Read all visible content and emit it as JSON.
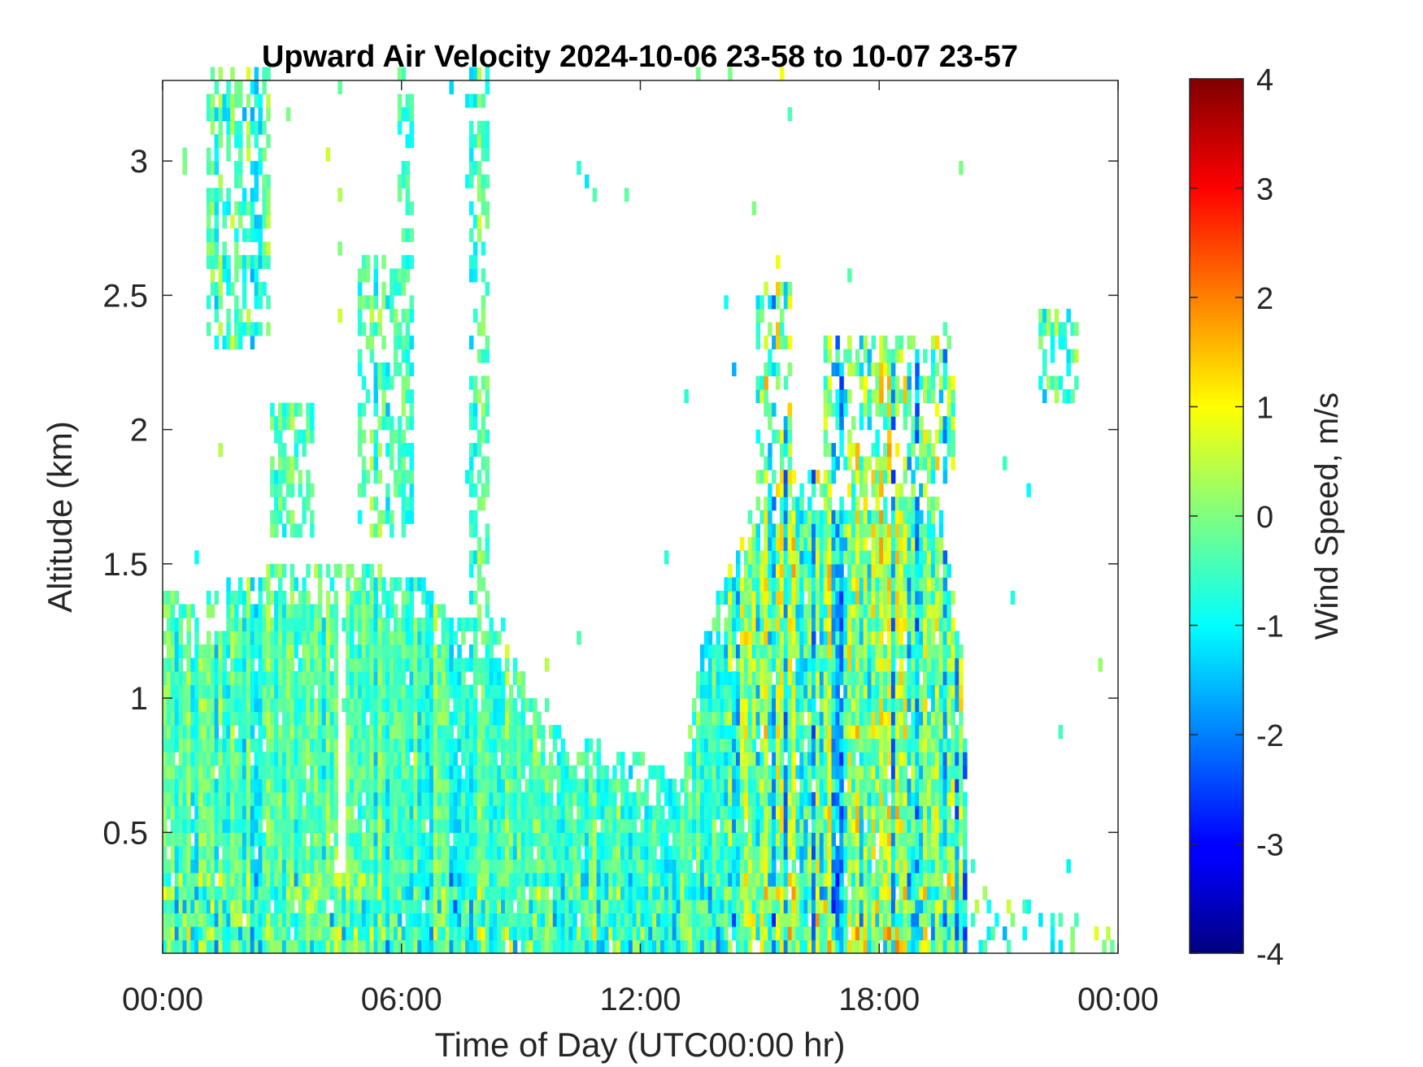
{
  "chart_data": {
    "type": "heatmap",
    "title": "Upward Air Velocity 2024-10-06 23-58 to 10-07 23-57",
    "xlabel": "Time of Day (UTC00:00 hr)",
    "ylabel": "Altitude (km)",
    "colorbar_label": "Wind Speed, m/s",
    "colormap": "jet",
    "x_range_hours": [
      0,
      24
    ],
    "x_ticks": [
      0,
      6,
      12,
      18,
      24
    ],
    "x_tick_labels": [
      "00:00",
      "06:00",
      "12:00",
      "18:00",
      "00:00"
    ],
    "y_range_km": [
      0.05,
      3.3
    ],
    "y_ticks": [
      0.5,
      1,
      1.5,
      2,
      2.5,
      3
    ],
    "y_tick_labels": [
      "0.5",
      "1",
      "1.5",
      "2",
      "2.5",
      "3"
    ],
    "c_range": [
      -4,
      4
    ],
    "c_ticks": [
      4,
      3,
      2,
      1,
      0,
      -1,
      -2,
      -3,
      -4
    ],
    "c_tick_labels": [
      "4",
      "3",
      "2",
      "1",
      "0",
      "-1",
      "-2",
      "-3",
      "-4"
    ],
    "grid": false,
    "data_top_km_by_hour": [
      [
        0.0,
        1.4
      ],
      [
        0.5,
        1.35
      ],
      [
        1.0,
        1.35
      ],
      [
        1.5,
        1.4
      ],
      [
        2.0,
        1.45
      ],
      [
        2.5,
        1.45
      ],
      [
        3.0,
        1.5
      ],
      [
        3.5,
        1.5
      ],
      [
        4.0,
        1.45
      ],
      [
        4.5,
        1.5
      ],
      [
        5.0,
        1.5
      ],
      [
        5.5,
        1.45
      ],
      [
        6.0,
        1.45
      ],
      [
        6.5,
        1.4
      ],
      [
        7.0,
        1.3
      ],
      [
        7.5,
        1.3
      ],
      [
        8.0,
        1.3
      ],
      [
        8.5,
        1.25
      ],
      [
        9.0,
        1.05
      ],
      [
        9.5,
        0.9
      ],
      [
        10.0,
        0.85
      ],
      [
        10.5,
        0.85
      ],
      [
        11.0,
        0.8
      ],
      [
        11.5,
        0.8
      ],
      [
        12.0,
        0.75
      ],
      [
        12.5,
        0.7
      ],
      [
        13.0,
        0.65
      ],
      [
        13.5,
        1.2
      ],
      [
        14.0,
        1.4
      ],
      [
        14.5,
        1.6
      ],
      [
        15.0,
        1.75
      ],
      [
        15.5,
        1.8
      ],
      [
        16.0,
        1.85
      ],
      [
        16.5,
        1.85
      ],
      [
        17.0,
        1.8
      ],
      [
        17.5,
        1.85
      ],
      [
        18.0,
        1.85
      ],
      [
        18.5,
        1.85
      ],
      [
        19.0,
        1.8
      ],
      [
        19.5,
        1.7
      ],
      [
        20.0,
        1.2
      ],
      [
        20.2,
        0.6
      ],
      [
        20.5,
        0.3
      ],
      [
        21.0,
        0.25
      ],
      [
        22.0,
        0.2
      ],
      [
        23.0,
        0.15
      ],
      [
        24.0,
        0.1
      ]
    ],
    "upper_features": [
      {
        "from_hour": 1.0,
        "to_hour": 2.7,
        "bottom_km": 2.3,
        "top_km": 3.3
      },
      {
        "from_hour": 2.7,
        "to_hour": 3.8,
        "bottom_km": 1.6,
        "top_km": 2.1
      },
      {
        "from_hour": 4.8,
        "to_hour": 6.1,
        "bottom_km": 1.6,
        "top_km": 2.6
      },
      {
        "from_hour": 5.8,
        "to_hour": 6.2,
        "bottom_km": 1.6,
        "top_km": 3.3
      },
      {
        "from_hour": 7.6,
        "to_hour": 8.1,
        "bottom_km": 1.3,
        "top_km": 3.3
      },
      {
        "from_hour": 14.8,
        "to_hour": 15.7,
        "bottom_km": 1.8,
        "top_km": 2.5
      },
      {
        "from_hour": 16.5,
        "to_hour": 19.9,
        "bottom_km": 1.8,
        "top_km": 2.3
      },
      {
        "from_hour": 22.0,
        "to_hour": 23.0,
        "bottom_km": 2.1,
        "top_km": 2.4
      }
    ]
  }
}
